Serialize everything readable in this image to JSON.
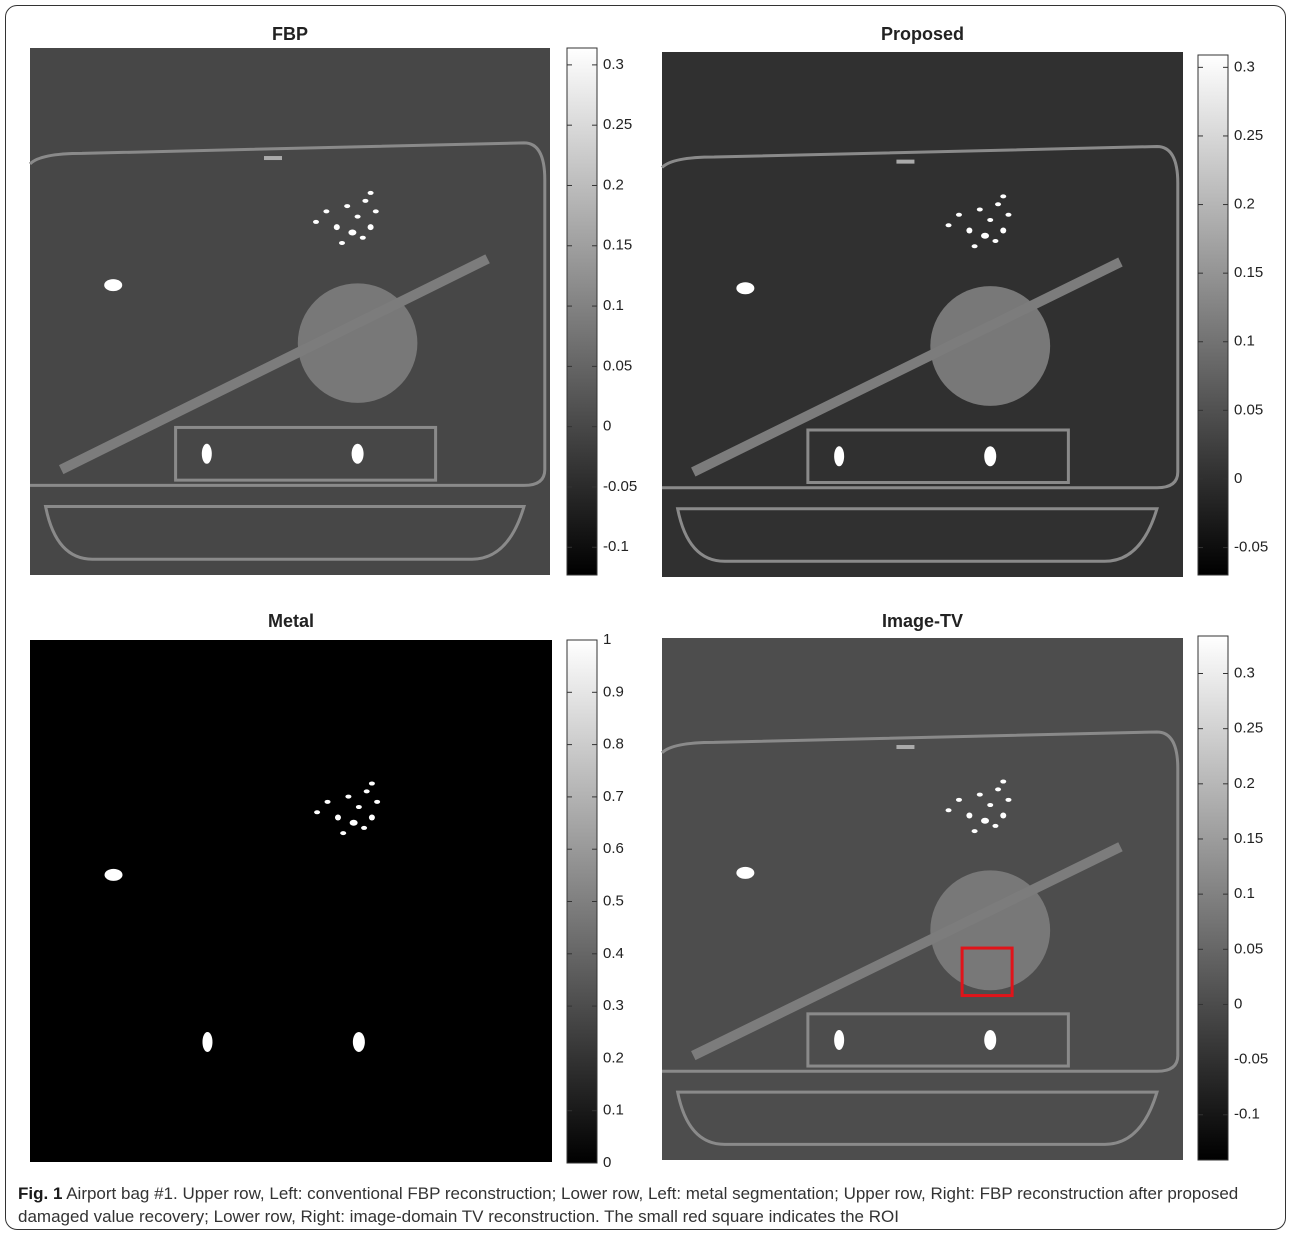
{
  "panels": [
    {
      "title": "FBP",
      "colorbar": {
        "lim": [
          -0.123,
          0.314
        ],
        "ticks": [
          0.3,
          0.25,
          0.2,
          0.15,
          0.1,
          0.05,
          0,
          -0.05,
          -0.1
        ]
      }
    },
    {
      "title": "Proposed",
      "colorbar": {
        "lim": [
          -0.07,
          0.309
        ],
        "ticks": [
          0.3,
          0.25,
          0.2,
          0.15,
          0.1,
          0.05,
          0,
          -0.05
        ]
      }
    },
    {
      "title": "Metal",
      "colorbar": {
        "lim": [
          0,
          1
        ],
        "ticks": [
          1,
          0.9,
          0.8,
          0.7,
          0.6,
          0.5,
          0.4,
          0.3,
          0.2,
          0.1,
          0
        ]
      }
    },
    {
      "title": "Image-TV",
      "colorbar": {
        "lim": [
          -0.141,
          0.334
        ],
        "ticks": [
          0.3,
          0.25,
          0.2,
          0.15,
          0.1,
          0.05,
          0,
          -0.05,
          -0.1
        ]
      }
    }
  ],
  "caption": {
    "label": "Fig. 1",
    "text": "Airport bag #1. Upper row, Left: conventional FBP reconstruction; Lower row, Left: metal segmentation; Upper row, Right: FBP reconstruction after proposed damaged value recovery; Lower row, Right: image-domain TV reconstruction. The small red square indicates the ROI"
  }
}
